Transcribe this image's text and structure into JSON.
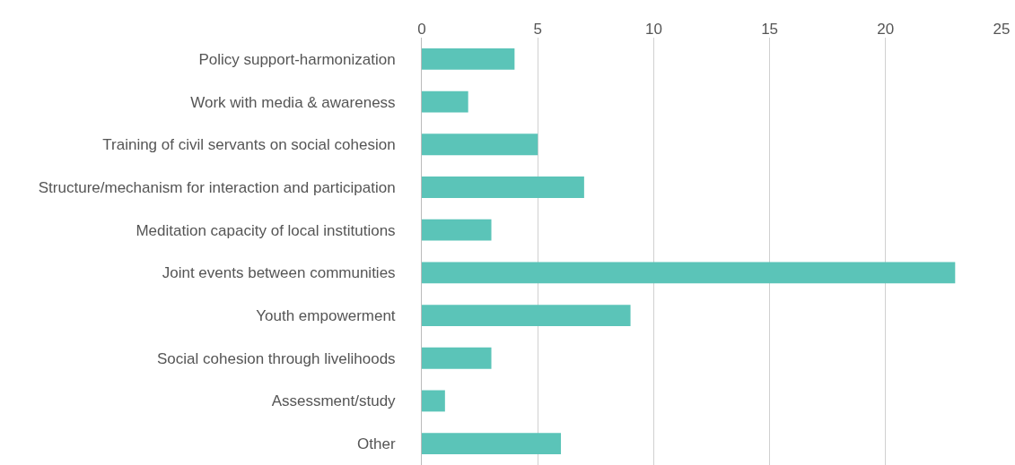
{
  "chart_data": {
    "type": "bar",
    "orientation": "horizontal",
    "categories": [
      "Policy support-harmonization",
      "Work with media & awareness",
      "Training of civil servants on social cohesion",
      "Structure/mechanism for interaction and participation",
      "Meditation capacity of local institutions",
      "Joint events between communities",
      "Youth empowerment",
      "Social cohesion through livelihoods",
      "Assessment/study",
      "Other"
    ],
    "values": [
      4,
      2,
      5,
      7,
      3,
      23,
      9,
      3,
      1,
      6
    ],
    "color": "#5bc4b8",
    "xlim": [
      0,
      25
    ],
    "xticks": [
      0,
      5,
      10,
      15,
      20,
      25
    ],
    "grid": "x"
  }
}
